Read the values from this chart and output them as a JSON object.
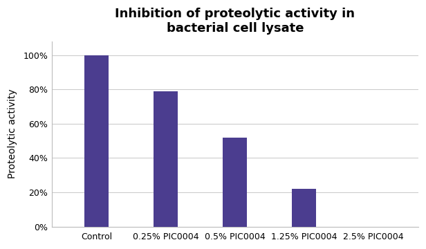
{
  "title": "Inhibition of proteolytic activity in\nbacterial cell lysate",
  "categories": [
    "Control",
    "0.25% PIC0004",
    "0.5% PIC0004",
    "1.25% PIC0004",
    "2.5% PIC0004"
  ],
  "values": [
    100,
    79,
    52,
    22,
    0
  ],
  "bar_color": "#4B3D8F",
  "ylabel": "Proteolytic activity",
  "ylim": [
    0,
    108
  ],
  "yticks": [
    0,
    20,
    40,
    60,
    80,
    100
  ],
  "ytick_labels": [
    "0%",
    "20%",
    "40%",
    "60%",
    "80%",
    "100%"
  ],
  "title_fontsize": 13,
  "label_fontsize": 10,
  "tick_fontsize": 9,
  "background_color": "#ffffff",
  "grid_color": "#cccccc",
  "bar_width": 0.35
}
